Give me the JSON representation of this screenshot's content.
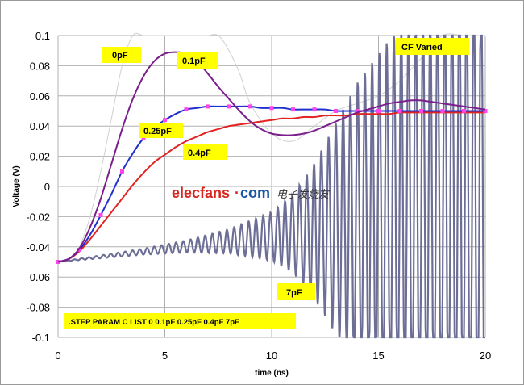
{
  "chart_data": {
    "type": "line",
    "title": "",
    "xlabel": "time (ns)",
    "ylabel": "Voltage (V)",
    "xlim": [
      0,
      20
    ],
    "ylim": [
      -0.1,
      0.1
    ],
    "x_ticks": [
      "0",
      "5",
      "10",
      "15",
      "20"
    ],
    "y_ticks": [
      "0.1",
      "0.08",
      "0.06",
      "0.04",
      "0.02",
      "0",
      "-0.02",
      "-0.04",
      "-0.06",
      "-0.08",
      "-0.1"
    ],
    "grid": true,
    "series": [
      {
        "name": "0pF",
        "color": "#ffffff",
        "x": [
          0,
          0.5,
          1,
          1.5,
          2,
          2.5,
          3,
          3.5,
          4,
          4.5,
          5,
          5.5,
          6,
          6.5,
          7,
          7.5,
          8,
          8.5,
          9,
          10,
          11,
          12,
          13,
          14,
          15,
          16,
          17,
          18,
          19,
          20
        ],
        "y": [
          -0.05,
          -0.049,
          -0.04,
          -0.02,
          0.01,
          0.045,
          0.08,
          0.1,
          0.1,
          0.1,
          0.1,
          0.1,
          0.1,
          0.1,
          0.1,
          0.1,
          0.09,
          0.075,
          0.055,
          0.035,
          0.03,
          0.04,
          0.05,
          0.055,
          0.06,
          0.07,
          0.085,
          0.1,
          0.1,
          0.1
        ]
      },
      {
        "name": "0.1pF",
        "color": "#7a1f8c",
        "x": [
          0,
          0.5,
          1,
          1.5,
          2,
          2.5,
          3,
          3.5,
          4,
          4.5,
          5,
          5.5,
          6,
          6.5,
          7,
          7.5,
          8,
          8.5,
          9,
          9.5,
          10,
          10.5,
          11,
          11.5,
          12,
          12.5,
          13,
          13.5,
          14,
          14.5,
          15,
          15.5,
          16,
          16.5,
          17,
          17.5,
          18,
          18.5,
          19,
          19.5,
          20
        ],
        "y": [
          -0.05,
          -0.048,
          -0.041,
          -0.027,
          -0.008,
          0.015,
          0.038,
          0.058,
          0.073,
          0.083,
          0.088,
          0.089,
          0.088,
          0.083,
          0.075,
          0.066,
          0.058,
          0.05,
          0.043,
          0.038,
          0.035,
          0.034,
          0.034,
          0.035,
          0.037,
          0.04,
          0.043,
          0.046,
          0.049,
          0.051,
          0.053,
          0.055,
          0.056,
          0.057,
          0.057,
          0.056,
          0.055,
          0.054,
          0.053,
          0.052,
          0.051
        ]
      },
      {
        "name": "0.25pF",
        "color": "#1f2fd0",
        "marker_color": "#ff44ee",
        "x": [
          0,
          0.5,
          1,
          1.5,
          2,
          2.5,
          3,
          3.5,
          4,
          4.5,
          5,
          5.5,
          6,
          6.5,
          7,
          7.5,
          8,
          8.5,
          9,
          9.5,
          10,
          10.5,
          11,
          11.5,
          12,
          12.5,
          13,
          13.5,
          14,
          14.5,
          15,
          15.5,
          16,
          16.5,
          17,
          17.5,
          18,
          18.5,
          19,
          19.5,
          20
        ],
        "y": [
          -0.05,
          -0.048,
          -0.042,
          -0.032,
          -0.019,
          -0.005,
          0.01,
          0.022,
          0.032,
          0.039,
          0.044,
          0.048,
          0.051,
          0.052,
          0.053,
          0.053,
          0.053,
          0.053,
          0.053,
          0.052,
          0.052,
          0.052,
          0.051,
          0.051,
          0.051,
          0.051,
          0.05,
          0.05,
          0.05,
          0.05,
          0.05,
          0.05,
          0.05,
          0.05,
          0.05,
          0.05,
          0.05,
          0.05,
          0.05,
          0.05,
          0.05
        ]
      },
      {
        "name": "0.4pF",
        "color": "#e32222",
        "x": [
          0,
          0.5,
          1,
          1.5,
          2,
          2.5,
          3,
          3.5,
          4,
          4.5,
          5,
          5.5,
          6,
          6.5,
          7,
          7.5,
          8,
          8.5,
          9,
          9.5,
          10,
          10.5,
          11,
          11.5,
          12,
          12.5,
          13,
          13.5,
          14,
          14.5,
          15,
          15.5,
          16,
          16.5,
          17,
          17.5,
          18,
          18.5,
          19,
          19.5,
          20
        ],
        "y": [
          -0.05,
          -0.048,
          -0.043,
          -0.035,
          -0.026,
          -0.017,
          -0.008,
          0.001,
          0.009,
          0.016,
          0.021,
          0.026,
          0.03,
          0.033,
          0.036,
          0.038,
          0.04,
          0.041,
          0.042,
          0.043,
          0.044,
          0.045,
          0.045,
          0.046,
          0.046,
          0.047,
          0.047,
          0.047,
          0.048,
          0.048,
          0.048,
          0.048,
          0.049,
          0.049,
          0.049,
          0.049,
          0.049,
          0.049,
          0.049,
          0.049,
          0.049
        ]
      },
      {
        "name": "7pF",
        "color": "#6d6e96",
        "oscillation": {
          "base": -0.05,
          "drift_per_ns": 0.0017,
          "period_ns": 0.34,
          "envelope_x": [
            0,
            2,
            4,
            6,
            8,
            10,
            11,
            12,
            13,
            14,
            16,
            20
          ],
          "envelope_amp": [
            0,
            0.001,
            0.002,
            0.004,
            0.008,
            0.016,
            0.026,
            0.045,
            0.07,
            0.095,
            0.13,
            0.16
          ]
        }
      }
    ],
    "annotations": [
      {
        "text": "0pF",
        "for": "0pF"
      },
      {
        "text": "0.1pF",
        "for": "0.1pF"
      },
      {
        "text": "0.25pF",
        "for": "0.25pF"
      },
      {
        "text": "0.4pF",
        "for": "0.4pF"
      },
      {
        "text": "7pF",
        "for": "7pF"
      },
      {
        "text": "CF Varied"
      },
      {
        "text": ".STEP PARAM C LIST 0 0.1pF 0.25pF 0.4pF 7pF"
      }
    ],
    "colors": {
      "label_box": "#ffff00",
      "grid": "#b0b0b0"
    }
  },
  "watermark": {
    "brand_red": "elecfans",
    "brand_blue": "com",
    "dot": "·",
    "tail": "电子发烧友"
  }
}
